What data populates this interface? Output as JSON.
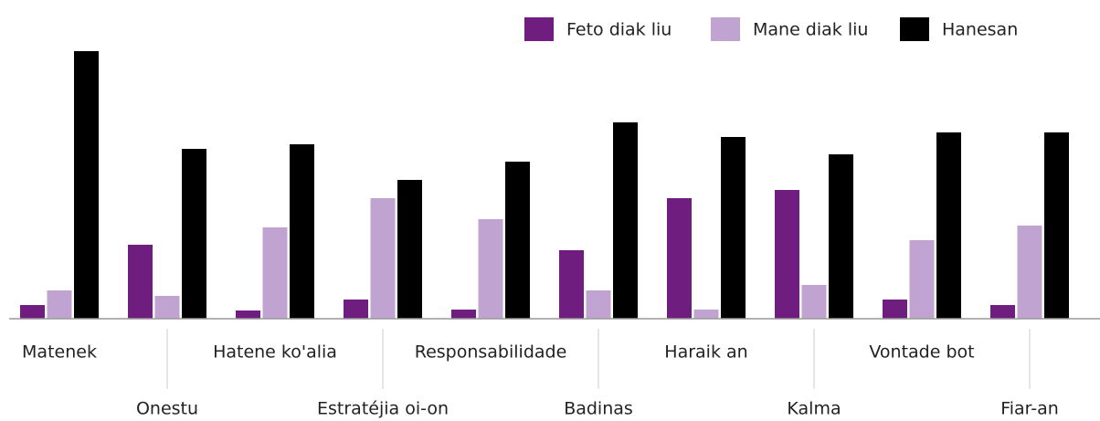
{
  "chart_data": {
    "type": "bar",
    "categories": [
      "Matenek",
      "Onestu",
      "Hatene ko'alia",
      "Estratéjia oi-on",
      "Responsabilidade",
      "Badinas",
      "Haraik an",
      "Kalma",
      "Vontade bot",
      "Fiar-an"
    ],
    "series": [
      {
        "name": "Feto diak liu",
        "color": "#6f1d7f",
        "values": [
          15,
          81,
          9,
          21,
          10,
          75,
          132,
          141,
          21,
          15
        ]
      },
      {
        "name": "Mane diak liu",
        "color": "#c0a3d0",
        "values": [
          31,
          25,
          100,
          132,
          109,
          31,
          10,
          37,
          86,
          102
        ]
      },
      {
        "name": "Hanesan",
        "color": "#000000",
        "values": [
          293,
          186,
          191,
          152,
          172,
          215,
          199,
          180,
          204,
          204
        ]
      }
    ],
    "ylim": [
      0,
      300
    ],
    "legend": "top-right"
  }
}
